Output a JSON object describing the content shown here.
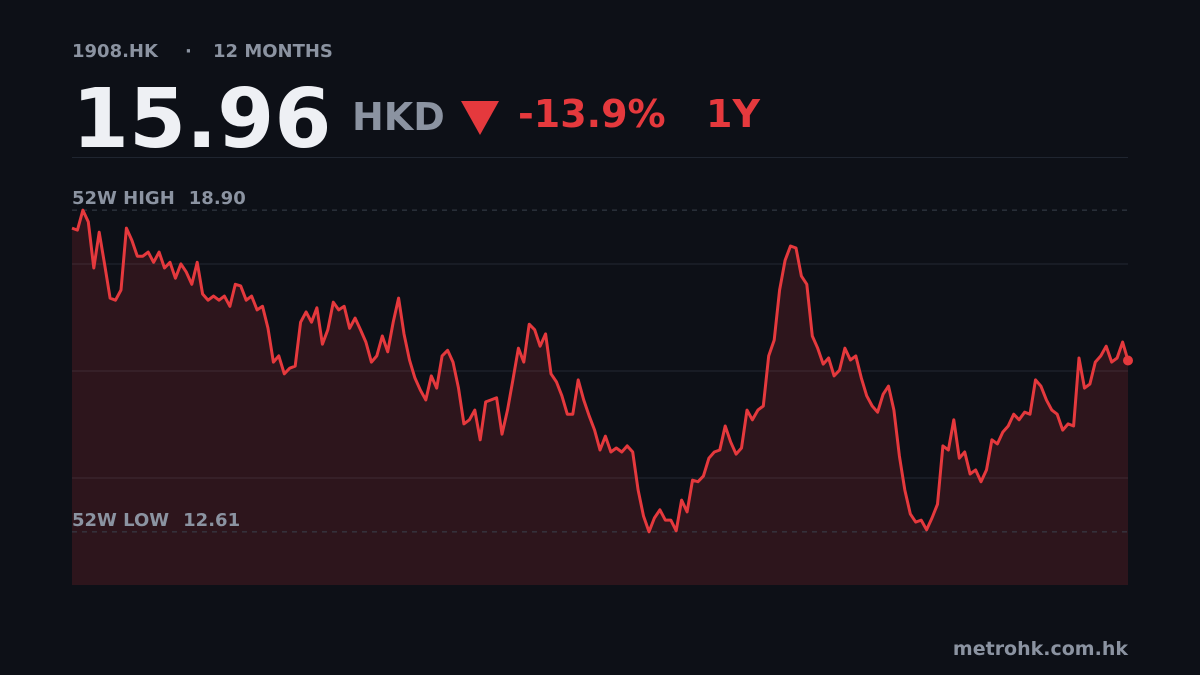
{
  "header": {
    "ticker": "1908.HK",
    "separator": "·",
    "period": "12 MONTHS",
    "price": "15.96",
    "currency": "HKD",
    "change": "-13.9%",
    "range": "1Y"
  },
  "chart_data": {
    "type": "area",
    "color": "#e5393d",
    "ylim": [
      11.57,
      19.94
    ],
    "values": [
      18.55,
      18.51,
      18.9,
      18.67,
      17.77,
      18.47,
      17.83,
      17.18,
      17.14,
      17.34,
      18.55,
      18.31,
      18.0,
      18.0,
      18.08,
      17.88,
      18.08,
      17.77,
      17.88,
      17.57,
      17.85,
      17.69,
      17.45,
      17.88,
      17.26,
      17.14,
      17.22,
      17.14,
      17.22,
      17.02,
      17.45,
      17.42,
      17.14,
      17.22,
      16.95,
      17.02,
      16.59,
      15.93,
      16.05,
      15.7,
      15.81,
      15.85,
      16.71,
      16.91,
      16.71,
      16.99,
      16.28,
      16.56,
      17.1,
      16.95,
      17.02,
      16.59,
      16.79,
      16.56,
      16.32,
      15.93,
      16.05,
      16.44,
      16.13,
      16.71,
      17.18,
      16.48,
      15.97,
      15.62,
      15.38,
      15.19,
      15.66,
      15.42,
      16.05,
      16.16,
      15.93,
      15.42,
      14.72,
      14.8,
      14.99,
      14.41,
      15.15,
      15.19,
      15.23,
      14.52,
      14.99,
      15.58,
      16.2,
      15.93,
      16.67,
      16.56,
      16.24,
      16.48,
      15.7,
      15.54,
      15.27,
      14.91,
      14.91,
      15.58,
      15.19,
      14.88,
      14.6,
      14.21,
      14.48,
      14.17,
      14.25,
      14.17,
      14.29,
      14.17,
      13.43,
      12.92,
      12.61,
      12.88,
      13.04,
      12.84,
      12.84,
      12.63,
      13.23,
      13.0,
      13.62,
      13.59,
      13.7,
      14.05,
      14.17,
      14.21,
      14.68,
      14.37,
      14.13,
      14.25,
      14.99,
      14.8,
      14.99,
      15.07,
      16.05,
      16.36,
      17.34,
      17.92,
      18.2,
      18.16,
      17.61,
      17.45,
      16.44,
      16.2,
      15.89,
      16.01,
      15.66,
      15.77,
      16.2,
      15.97,
      16.05,
      15.62,
      15.27,
      15.07,
      14.95,
      15.3,
      15.46,
      14.99,
      14.09,
      13.43,
      12.96,
      12.8,
      12.84,
      12.65,
      12.88,
      13.15,
      14.29,
      14.21,
      14.8,
      14.05,
      14.17,
      13.74,
      13.82,
      13.59,
      13.82,
      14.41,
      14.33,
      14.56,
      14.68,
      14.91,
      14.8,
      14.95,
      14.91,
      15.58,
      15.46,
      15.19,
      14.99,
      14.91,
      14.6,
      14.72,
      14.68,
      16.01,
      15.42,
      15.5,
      15.93,
      16.05,
      16.24,
      15.93,
      16.01,
      16.32,
      15.96
    ],
    "reference_lines": [
      {
        "label": "52W HIGH",
        "value": 18.9,
        "value_label": "18.90"
      },
      {
        "label": "52W LOW",
        "value": 12.61,
        "value_label": "12.61"
      }
    ]
  },
  "footer": {
    "source": "metrohk.com.hk"
  }
}
